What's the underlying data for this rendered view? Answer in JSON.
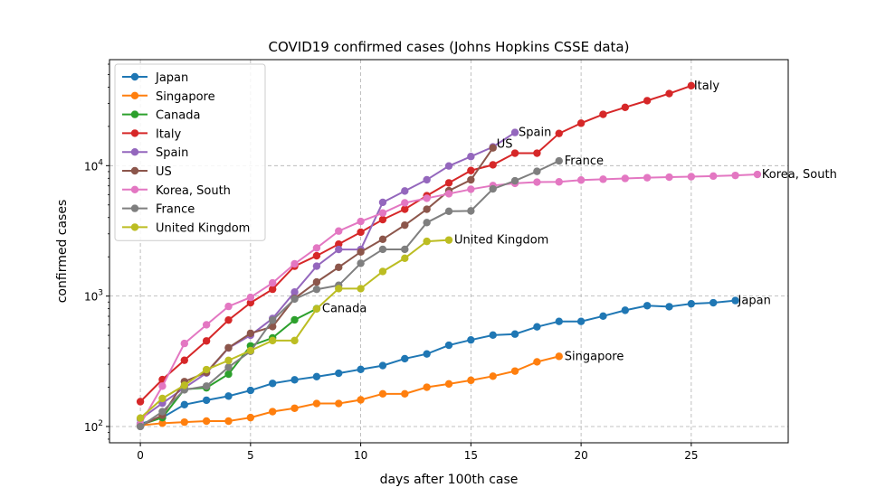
{
  "chart_data": {
    "type": "line",
    "title": "COVID19 confirmed cases (Johns Hopkins CSSE data)",
    "xlabel": "days after 100th case",
    "ylabel": "confirmed cases",
    "xlim": [
      -1.4,
      29.4
    ],
    "ylim": [
      75,
      65000
    ],
    "y_scale": "log",
    "grid": true,
    "legend_position": "top-left",
    "x_ticks": [
      0,
      5,
      10,
      15,
      20,
      25
    ],
    "y_ticks": [
      {
        "value": 100,
        "base": "10",
        "exp": "2"
      },
      {
        "value": 1000,
        "base": "10",
        "exp": "3"
      },
      {
        "value": 10000,
        "base": "10",
        "exp": "4"
      }
    ],
    "series": [
      {
        "name": "Japan",
        "color": "#1f77b4",
        "label_offset": [
          3,
          0
        ],
        "values": [
          105,
          117,
          147,
          159,
          171,
          189,
          214,
          228,
          241,
          256,
          274,
          293,
          331,
          360,
          420,
          461,
          502,
          511,
          581,
          639,
          639,
          702,
          778,
          844,
          829,
          873,
          889,
          924
        ]
      },
      {
        "name": "Singapore",
        "color": "#ff7f0e",
        "label_offset": [
          6,
          0
        ],
        "values": [
          102,
          106,
          108,
          110,
          110,
          117,
          130,
          138,
          150,
          150,
          160,
          178,
          178,
          200,
          212,
          226,
          243,
          266,
          313,
          345
        ]
      },
      {
        "name": "Canada",
        "color": "#2ca02c",
        "label_offset": [
          6,
          0
        ],
        "values": [
          103,
          117,
          193,
          198,
          252,
          415,
          478,
          657,
          800
        ]
      },
      {
        "name": "Italy",
        "color": "#d62728",
        "label_offset": [
          3,
          0
        ],
        "values": [
          155,
          229,
          322,
          453,
          655,
          888,
          1128,
          1694,
          2036,
          2502,
          3089,
          3858,
          4636,
          5883,
          7375,
          9172,
          10149,
          12462,
          12462,
          17660,
          21157,
          24747,
          27980,
          31506,
          35713,
          41035
        ]
      },
      {
        "name": "Spain",
        "color": "#9467bd",
        "label_offset": [
          4,
          0
        ],
        "values": [
          114,
          151,
          198,
          257,
          400,
          500,
          673,
          1073,
          1695,
          2277,
          2277,
          5232,
          6391,
          7798,
          9942,
          11748,
          13910,
          17963
        ]
      },
      {
        "name": "US",
        "color": "#8c564b",
        "label_offset": [
          4,
          -4
        ],
        "values": [
          101,
          122,
          221,
          260,
          402,
          518,
          583,
          959,
          1281,
          1663,
          2179,
          2726,
          3499,
          4632,
          6421,
          7783,
          13677
        ]
      },
      {
        "name": "Korea, South",
        "color": "#e377c2",
        "label_offset": [
          5,
          0
        ],
        "values": [
          104,
          204,
          433,
          602,
          833,
          977,
          1261,
          1766,
          2337,
          3150,
          3736,
          4335,
          5186,
          5621,
          6088,
          6593,
          7041,
          7314,
          7478,
          7513,
          7755,
          7869,
          7979,
          8086,
          8162,
          8236,
          8320,
          8413,
          8565
        ]
      },
      {
        "name": "France",
        "color": "#7f7f7f",
        "label_offset": [
          6,
          0
        ],
        "values": [
          100,
          130,
          191,
          204,
          285,
          377,
          653,
          949,
          1126,
          1209,
          1784,
          2281,
          2281,
          3661,
          4469,
          4499,
          6633,
          7652,
          9043,
          10871
        ]
      },
      {
        "name": "United Kingdom",
        "color": "#bcbd22",
        "label_offset": [
          6,
          0
        ],
        "values": [
          116,
          164,
          207,
          273,
          321,
          382,
          456,
          456,
          798,
          1140,
          1140,
          1543,
          1950,
          2626,
          2689
        ]
      }
    ]
  }
}
